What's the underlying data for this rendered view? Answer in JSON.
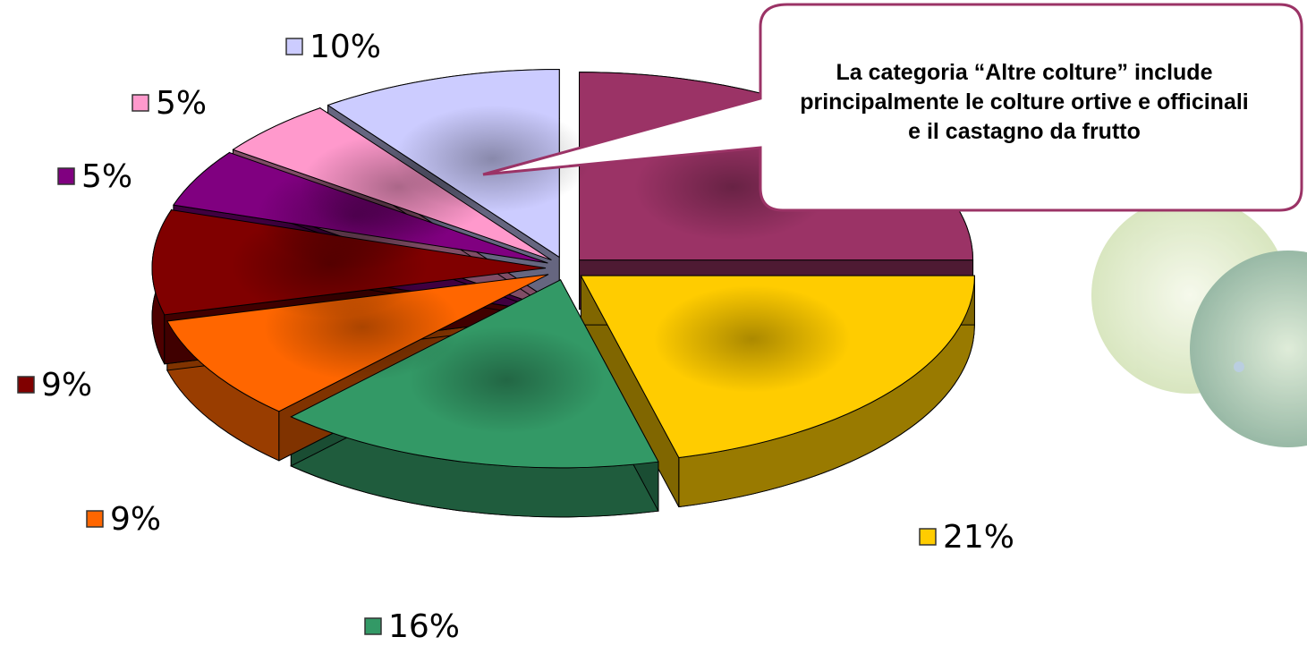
{
  "chart_data": {
    "type": "pie",
    "values": [
      25,
      21,
      16,
      9,
      9,
      5,
      5,
      10
    ],
    "value_labels": [
      null,
      "21%",
      "16%",
      "9%",
      "9%",
      "5%",
      "5%",
      "10%"
    ],
    "colors": [
      "#9b3366",
      "#ffcc00",
      "#339966",
      "#ff6600",
      "#800000",
      "#800080",
      "#ff99cc",
      "#ccccff"
    ],
    "annotation": "La categoria “Altre colture” include principalmente le colture ortive e officinali e il castagno da frutto"
  }
}
